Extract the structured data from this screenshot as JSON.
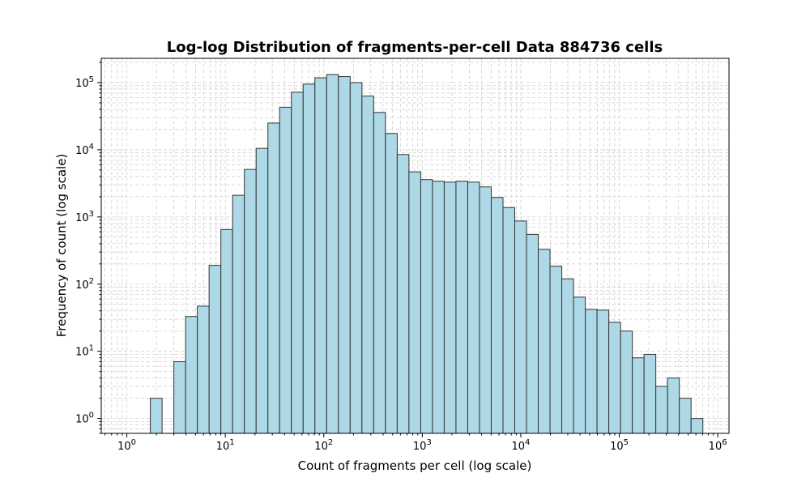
{
  "chart_data": {
    "type": "bar",
    "title": "Log-log Distribution of fragments-per-cell Data 884736 cells",
    "xlabel": "Count of fragments per cell (log scale)",
    "ylabel": "Frequency of count (log scale)",
    "xscale": "log",
    "yscale": "log",
    "xlim": [
      0.55,
      1300000
    ],
    "ylim": [
      0.6,
      230000
    ],
    "grid": true,
    "bar_color": "#add8e6",
    "edge_color": "#333333",
    "x_ticks": [
      {
        "base": "10",
        "exp": "0",
        "value": 1
      },
      {
        "base": "10",
        "exp": "1",
        "value": 10
      },
      {
        "base": "10",
        "exp": "2",
        "value": 100
      },
      {
        "base": "10",
        "exp": "3",
        "value": 1000
      },
      {
        "base": "10",
        "exp": "4",
        "value": 10000
      },
      {
        "base": "10",
        "exp": "5",
        "value": 100000
      },
      {
        "base": "10",
        "exp": "6",
        "value": 1000000
      }
    ],
    "y_ticks": [
      {
        "base": "10",
        "exp": "0",
        "value": 1
      },
      {
        "base": "10",
        "exp": "1",
        "value": 10
      },
      {
        "base": "10",
        "exp": "2",
        "value": 100
      },
      {
        "base": "10",
        "exp": "3",
        "value": 1000
      },
      {
        "base": "10",
        "exp": "4",
        "value": 10000
      },
      {
        "base": "10",
        "exp": "5",
        "value": 100000
      }
    ],
    "bin_start": 1.0,
    "bin_ratio": 1.3163,
    "counts": [
      0,
      0,
      2,
      0,
      7,
      33,
      47,
      190,
      650,
      2100,
      5100,
      10500,
      25000,
      43000,
      72000,
      95000,
      118000,
      132000,
      123000,
      100000,
      63000,
      36000,
      17500,
      8500,
      4700,
      3600,
      3400,
      3300,
      3400,
      3300,
      2800,
      1950,
      1380,
      870,
      550,
      330,
      185,
      120,
      64,
      42,
      41,
      27,
      20,
      8,
      9,
      3,
      4,
      2,
      1
    ]
  }
}
